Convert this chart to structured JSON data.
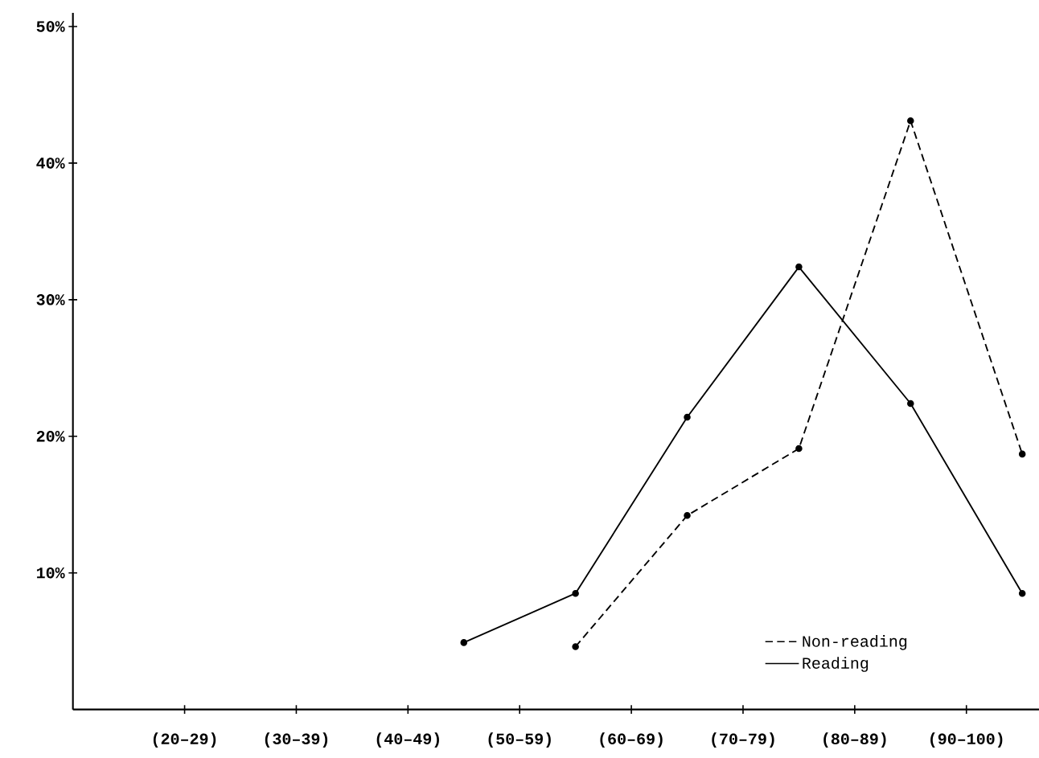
{
  "chart_data": {
    "type": "line",
    "ylim": [
      0,
      51
    ],
    "categories": [
      "(20–29)",
      null,
      "(30–39)",
      null,
      "(40–49)",
      null,
      "(50–59)",
      null,
      "(60–69)",
      null,
      "(70–79)",
      null,
      "(80–89)",
      null,
      "(90–100)",
      null
    ],
    "yticks": [
      {
        "value": 10,
        "label": "10%"
      },
      {
        "value": 20,
        "label": "20%"
      },
      {
        "value": 30,
        "label": "30%"
      },
      {
        "value": 40,
        "label": "40%"
      },
      {
        "value": 50,
        "label": "50%"
      }
    ],
    "series": [
      {
        "name": "Non-reading",
        "color": "#000000",
        "line_style": "dashed",
        "values": [
          null,
          null,
          null,
          null,
          null,
          null,
          null,
          4.6,
          null,
          14.2,
          null,
          19.1,
          null,
          43.1,
          null,
          18.7
        ]
      },
      {
        "name": "Reading",
        "color": "#000000",
        "line_style": "solid",
        "values": [
          null,
          null,
          null,
          null,
          null,
          4.9,
          null,
          8.5,
          null,
          21.4,
          null,
          32.4,
          null,
          22.4,
          null,
          8.5
        ]
      }
    ],
    "marker": "circle",
    "grid": false,
    "legend": "bottom right"
  }
}
